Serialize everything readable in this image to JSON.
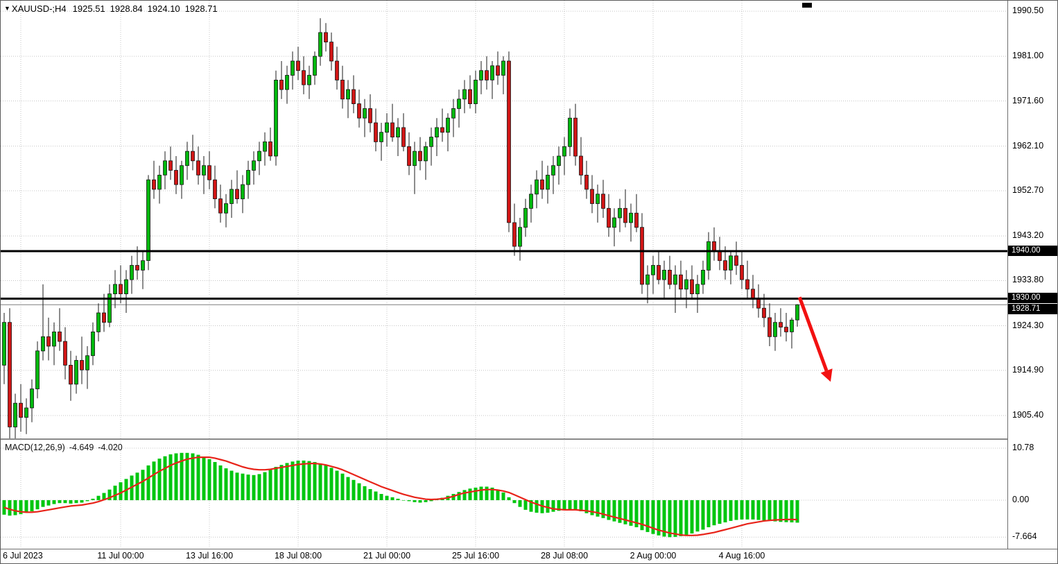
{
  "header": {
    "dropdown_icon": "▼",
    "symbol_timeframe": "XAUUSD-;H4",
    "open": "1925.51",
    "high": "1928.84",
    "low": "1924.10",
    "close": "1928.71"
  },
  "colors": {
    "bull": "#00b80e",
    "bear": "#d01616",
    "wick": "#1a1a1a",
    "candle_outline": "#151515",
    "grid": "#c4c4c4",
    "level": "#000000",
    "signal": "#e82319",
    "arrow": "#f21111",
    "histogram": "#00c60f",
    "current_price_line": "#7d7d7d",
    "label_box_bg": "#000000",
    "label_box_text": "#ffffff"
  },
  "chart_data": {
    "type": "candlestick",
    "symbol": "XAUUSD-",
    "timeframe": "H4",
    "price_ticks": [
      1990.5,
      1981.0,
      1971.6,
      1962.1,
      1952.7,
      1943.2,
      1933.8,
      1924.3,
      1914.9,
      1905.4
    ],
    "price_axis_range": [
      1900.9,
      1992.7
    ],
    "x_ticks": [
      {
        "label": "6 Jul 2023",
        "index": 3
      },
      {
        "label": "11 Jul 00:00",
        "index": 21
      },
      {
        "label": "13 Jul 16:00",
        "index": 37
      },
      {
        "label": "18 Jul 08:00",
        "index": 53
      },
      {
        "label": "21 Jul 00:00",
        "index": 69
      },
      {
        "label": "25 Jul 16:00",
        "index": 85
      },
      {
        "label": "28 Jul 08:00",
        "index": 101
      },
      {
        "label": "2 Aug 00:00",
        "index": 117
      },
      {
        "label": "4 Aug 16:00",
        "index": 133
      }
    ],
    "levels": [
      {
        "value": 1940.0,
        "label": "1940.00"
      },
      {
        "value": 1930.0,
        "label": "1930.00"
      }
    ],
    "current_price": {
      "value": 1928.71,
      "label": "1928.71"
    },
    "arrow": {
      "from": {
        "index": 143.4,
        "price": 1930.3
      },
      "to": {
        "index": 149,
        "price": 1912.5
      }
    },
    "candles": [
      [
        1916,
        1927,
        1912,
        1925
      ],
      [
        1925,
        1928,
        1899,
        1903
      ],
      [
        1903,
        1910,
        1900,
        1908
      ],
      [
        1908,
        1912,
        1902,
        1905
      ],
      [
        1905,
        1909,
        1901.5,
        1907
      ],
      [
        1907,
        1913,
        1904,
        1911
      ],
      [
        1911,
        1921,
        1909,
        1919
      ],
      [
        1919,
        1933,
        1917,
        1922
      ],
      [
        1922,
        1926,
        1917,
        1920
      ],
      [
        1920,
        1925,
        1916,
        1923
      ],
      [
        1923,
        1928,
        1919,
        1921
      ],
      [
        1921,
        1924,
        1913,
        1916
      ],
      [
        1916,
        1919,
        1908.5,
        1912
      ],
      [
        1912,
        1918,
        1910,
        1917
      ],
      [
        1917,
        1922,
        1912,
        1915
      ],
      [
        1915,
        1920,
        1911,
        1918
      ],
      [
        1918,
        1925,
        1916,
        1923
      ],
      [
        1923,
        1929,
        1921,
        1927
      ],
      [
        1927,
        1931,
        1923,
        1925
      ],
      [
        1925,
        1933,
        1924,
        1931
      ],
      [
        1931,
        1936,
        1928,
        1933
      ],
      [
        1933,
        1937,
        1929,
        1931
      ],
      [
        1931,
        1936,
        1927,
        1934
      ],
      [
        1934,
        1939,
        1931,
        1937
      ],
      [
        1937,
        1941,
        1934,
        1936
      ],
      [
        1936,
        1940,
        1932,
        1938
      ],
      [
        1938,
        1956,
        1936,
        1955
      ],
      [
        1955,
        1959,
        1951,
        1953
      ],
      [
        1953,
        1958,
        1950,
        1956
      ],
      [
        1956,
        1961,
        1953,
        1959
      ],
      [
        1959,
        1962,
        1955,
        1957
      ],
      [
        1957,
        1960,
        1952,
        1954
      ],
      [
        1954,
        1959,
        1951,
        1958
      ],
      [
        1958,
        1963,
        1955,
        1961
      ],
      [
        1961,
        1964.5,
        1957,
        1959
      ],
      [
        1959,
        1962,
        1954,
        1956
      ],
      [
        1956,
        1960,
        1952,
        1958
      ],
      [
        1958,
        1961,
        1953,
        1955
      ],
      [
        1955,
        1958,
        1949,
        1951
      ],
      [
        1951,
        1954,
        1946,
        1948
      ],
      [
        1948,
        1952,
        1945,
        1950
      ],
      [
        1950,
        1955,
        1947,
        1953
      ],
      [
        1953,
        1957,
        1950,
        1951
      ],
      [
        1951,
        1956,
        1948,
        1954
      ],
      [
        1954,
        1959,
        1951,
        1957
      ],
      [
        1957,
        1961,
        1954,
        1959
      ],
      [
        1959,
        1963,
        1956,
        1961
      ],
      [
        1961,
        1965,
        1958,
        1963
      ],
      [
        1963,
        1966,
        1959,
        1960
      ],
      [
        1960,
        1978,
        1958,
        1976
      ],
      [
        1976,
        1980,
        1972,
        1974
      ],
      [
        1974,
        1979,
        1971,
        1977
      ],
      [
        1977,
        1982,
        1974,
        1980
      ],
      [
        1980,
        1983,
        1976,
        1978
      ],
      [
        1978,
        1981,
        1973,
        1975
      ],
      [
        1975,
        1979,
        1972,
        1977
      ],
      [
        1977,
        1982,
        1975,
        1981
      ],
      [
        1981,
        1989,
        1979,
        1986
      ],
      [
        1986,
        1988,
        1982,
        1984
      ],
      [
        1984,
        1986,
        1978,
        1980
      ],
      [
        1980,
        1983,
        1974,
        1976
      ],
      [
        1976,
        1979,
        1970,
        1972
      ],
      [
        1972,
        1976,
        1968,
        1974
      ],
      [
        1974,
        1977,
        1969,
        1971
      ],
      [
        1971,
        1974,
        1966,
        1968
      ],
      [
        1968,
        1972,
        1964,
        1970
      ],
      [
        1970,
        1973,
        1965,
        1967
      ],
      [
        1967,
        1970,
        1961,
        1963
      ],
      [
        1963,
        1967,
        1959,
        1965
      ],
      [
        1965,
        1969,
        1962,
        1967
      ],
      [
        1967,
        1971,
        1963,
        1964
      ],
      [
        1964,
        1968,
        1960,
        1966
      ],
      [
        1966,
        1969,
        1961,
        1962
      ],
      [
        1962,
        1965,
        1956,
        1958
      ],
      [
        1958,
        1963,
        1952,
        1961
      ],
      [
        1961,
        1964,
        1957,
        1959
      ],
      [
        1959,
        1963,
        1955,
        1962
      ],
      [
        1962,
        1966,
        1958,
        1964
      ],
      [
        1964,
        1968,
        1960,
        1966
      ],
      [
        1966,
        1970,
        1963,
        1965
      ],
      [
        1965,
        1969,
        1961,
        1968
      ],
      [
        1968,
        1972,
        1964,
        1970
      ],
      [
        1970,
        1974,
        1966,
        1972
      ],
      [
        1972,
        1976,
        1969,
        1974
      ],
      [
        1974,
        1977,
        1970,
        1971
      ],
      [
        1971,
        1978,
        1969,
        1976
      ],
      [
        1976,
        1980,
        1973,
        1978
      ],
      [
        1978,
        1981,
        1974,
        1976
      ],
      [
        1976,
        1980,
        1972,
        1979
      ],
      [
        1979,
        1982,
        1975,
        1977
      ],
      [
        1977,
        1981,
        1973,
        1980
      ],
      [
        1980,
        1982,
        1944,
        1946
      ],
      [
        1946,
        1950,
        1939,
        1941
      ],
      [
        1941,
        1947,
        1938,
        1945
      ],
      [
        1945,
        1951,
        1943,
        1949
      ],
      [
        1949,
        1954,
        1946,
        1952
      ],
      [
        1952,
        1957,
        1949,
        1955
      ],
      [
        1955,
        1959,
        1951,
        1953
      ],
      [
        1953,
        1958,
        1950,
        1956
      ],
      [
        1956,
        1960,
        1952,
        1958
      ],
      [
        1958,
        1962,
        1954,
        1960
      ],
      [
        1960,
        1964,
        1956,
        1962
      ],
      [
        1962,
        1970,
        1960,
        1968
      ],
      [
        1968,
        1971,
        1958,
        1960
      ],
      [
        1960,
        1964,
        1954,
        1956
      ],
      [
        1956,
        1959,
        1951,
        1953
      ],
      [
        1953,
        1956,
        1948,
        1950
      ],
      [
        1950,
        1954,
        1946,
        1952
      ],
      [
        1952,
        1955,
        1947,
        1949
      ],
      [
        1949,
        1952,
        1943,
        1945
      ],
      [
        1945,
        1949,
        1941,
        1947
      ],
      [
        1947,
        1951,
        1944,
        1949
      ],
      [
        1949,
        1953,
        1945,
        1946
      ],
      [
        1946,
        1950,
        1942,
        1948
      ],
      [
        1948,
        1952,
        1944,
        1945
      ],
      [
        1945,
        1948,
        1931,
        1933
      ],
      [
        1933,
        1937,
        1929,
        1935
      ],
      [
        1935,
        1939,
        1931,
        1937
      ],
      [
        1937,
        1940,
        1933,
        1934
      ],
      [
        1934,
        1938,
        1930,
        1936
      ],
      [
        1936,
        1939,
        1932,
        1933
      ],
      [
        1933,
        1937,
        1927,
        1935
      ],
      [
        1935,
        1938,
        1930,
        1932
      ],
      [
        1932,
        1936,
        1928,
        1934
      ],
      [
        1934,
        1937,
        1930,
        1931
      ],
      [
        1931,
        1935,
        1927,
        1933
      ],
      [
        1933,
        1938,
        1931,
        1936
      ],
      [
        1936,
        1944,
        1934,
        1942
      ],
      [
        1942,
        1945,
        1938,
        1940
      ],
      [
        1940,
        1943,
        1936,
        1938
      ],
      [
        1938,
        1941,
        1934,
        1936
      ],
      [
        1936,
        1940,
        1933,
        1939
      ],
      [
        1939,
        1942,
        1935,
        1937
      ],
      [
        1937,
        1940,
        1932,
        1934
      ],
      [
        1934,
        1938,
        1930,
        1932
      ],
      [
        1932,
        1935,
        1928,
        1930
      ],
      [
        1930,
        1933,
        1926,
        1928
      ],
      [
        1928,
        1931,
        1924,
        1926
      ],
      [
        1926,
        1929,
        1920,
        1922
      ],
      [
        1922,
        1927,
        1919,
        1925
      ],
      [
        1925,
        1928,
        1922,
        1924
      ],
      [
        1924,
        1927,
        1921,
        1923
      ],
      [
        1923,
        1926,
        1919.5,
        1925.5
      ],
      [
        1925.51,
        1928.84,
        1924.1,
        1928.71
      ]
    ],
    "macd": {
      "title": "MACD(12,26,9)",
      "main_value": "-4.649",
      "signal_value": "-4.020",
      "axis_ticks": [
        10.78,
        0,
        -7.664
      ],
      "axis_labels": [
        "10.78",
        "0.00",
        "-7.664"
      ],
      "histogram": [
        -3.0,
        -3.2,
        -3.1,
        -2.9,
        -2.6,
        -2.3,
        -1.9,
        -1.4,
        -1.1,
        -0.8,
        -0.6,
        -0.6,
        -0.7,
        -0.6,
        -0.5,
        -0.2,
        0.3,
        0.9,
        1.5,
        2.2,
        3.0,
        3.7,
        4.4,
        5.1,
        5.7,
        6.3,
        7.2,
        8.0,
        8.6,
        9.1,
        9.5,
        9.7,
        9.8,
        9.8,
        9.7,
        9.4,
        9.0,
        8.5,
        7.9,
        7.2,
        6.6,
        6.1,
        5.7,
        5.5,
        5.3,
        5.2,
        5.4,
        5.8,
        6.3,
        6.9,
        7.3,
        7.7,
        8.0,
        8.2,
        8.2,
        8.1,
        7.9,
        7.6,
        7.2,
        6.7,
        6.1,
        5.5,
        4.8,
        4.2,
        3.5,
        2.9,
        2.3,
        1.8,
        1.3,
        0.9,
        0.6,
        0.3,
        0.0,
        -0.2,
        -0.4,
        -0.5,
        -0.4,
        -0.2,
        0.1,
        0.5,
        0.9,
        1.3,
        1.7,
        2.1,
        2.4,
        2.6,
        2.8,
        2.8,
        2.6,
        2.2,
        1.6,
        0.6,
        -0.6,
        -1.4,
        -2.0,
        -2.4,
        -2.6,
        -2.7,
        -2.6,
        -2.4,
        -2.2,
        -2.0,
        -1.9,
        -2.0,
        -2.3,
        -2.7,
        -3.1,
        -3.4,
        -3.7,
        -4.1,
        -4.4,
        -4.7,
        -5.0,
        -5.3,
        -5.6,
        -6.2,
        -6.6,
        -7.0,
        -7.3,
        -7.55,
        -7.66,
        -7.6,
        -7.45,
        -7.2,
        -6.9,
        -6.5,
        -6.1,
        -5.6,
        -5.2,
        -4.9,
        -4.6,
        -4.3,
        -4.1,
        -4.0,
        -4.0,
        -4.0,
        -4.1,
        -4.2,
        -4.3,
        -4.4,
        -4.5,
        -4.55,
        -4.6,
        -4.649
      ],
      "signal": [
        -1.5,
        -1.9,
        -2.2,
        -2.4,
        -2.5,
        -2.5,
        -2.4,
        -2.2,
        -2.0,
        -1.8,
        -1.6,
        -1.4,
        -1.2,
        -1.1,
        -1.0,
        -0.8,
        -0.6,
        -0.3,
        0.1,
        0.5,
        1.0,
        1.5,
        2.1,
        2.7,
        3.3,
        3.9,
        4.6,
        5.3,
        6.0,
        6.6,
        7.2,
        7.7,
        8.1,
        8.5,
        8.7,
        8.9,
        8.9,
        8.9,
        8.7,
        8.4,
        8.1,
        7.7,
        7.3,
        6.9,
        6.6,
        6.4,
        6.3,
        6.3,
        6.4,
        6.6,
        6.8,
        7.0,
        7.2,
        7.4,
        7.5,
        7.6,
        7.6,
        7.5,
        7.3,
        7.0,
        6.7,
        6.3,
        5.8,
        5.3,
        4.8,
        4.3,
        3.8,
        3.3,
        2.8,
        2.4,
        2.0,
        1.6,
        1.2,
        0.9,
        0.6,
        0.4,
        0.2,
        0.15,
        0.2,
        0.3,
        0.5,
        0.8,
        1.2,
        1.5,
        1.7,
        1.9,
        2.1,
        2.2,
        2.2,
        2.1,
        1.9,
        1.6,
        1.1,
        0.6,
        0.1,
        -0.4,
        -0.8,
        -1.2,
        -1.5,
        -1.8,
        -1.9,
        -2.0,
        -2.0,
        -2.0,
        -2.1,
        -2.2,
        -2.4,
        -2.6,
        -2.9,
        -3.2,
        -3.5,
        -3.8,
        -4.1,
        -4.4,
        -4.7,
        -5.0,
        -5.4,
        -5.8,
        -6.2,
        -6.5,
        -6.8,
        -7.0,
        -7.2,
        -7.3,
        -7.3,
        -7.25,
        -7.1,
        -6.9,
        -6.7,
        -6.4,
        -6.1,
        -5.8,
        -5.5,
        -5.2,
        -4.9,
        -4.7,
        -4.5,
        -4.3,
        -4.2,
        -4.1,
        -4.05,
        -4.0,
        -4.0,
        -4.02
      ]
    }
  }
}
